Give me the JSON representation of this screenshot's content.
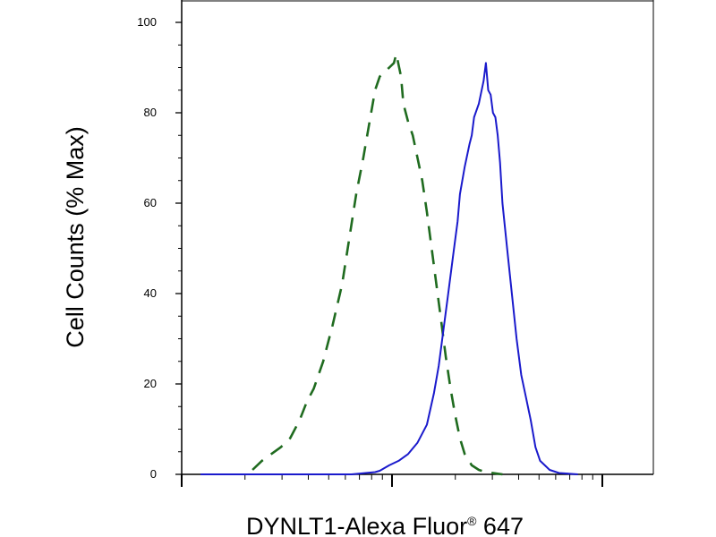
{
  "chart_data": {
    "type": "line",
    "xlabel": "DYNLT1-Alexa Fluor",
    "xlabel_mark": "®",
    "xlabel_suffix": " 647",
    "ylabel": "Cell Counts (% Max)",
    "ylim": [
      0,
      105
    ],
    "yticks": [
      "0",
      "20",
      "40",
      "60",
      "80",
      "100"
    ],
    "x_scale": "log",
    "grid": false,
    "legend": "none",
    "series": [
      {
        "style": "dashed",
        "color": "#1f6b1f",
        "points": [
          [
            0.15,
            1
          ],
          [
            0.17,
            3
          ],
          [
            0.19,
            4.5
          ],
          [
            0.21,
            6
          ],
          [
            0.23,
            8
          ],
          [
            0.25,
            12
          ],
          [
            0.265,
            16
          ],
          [
            0.28,
            19
          ],
          [
            0.3,
            25
          ],
          [
            0.32,
            33
          ],
          [
            0.34,
            42
          ],
          [
            0.355,
            52
          ],
          [
            0.37,
            62
          ],
          [
            0.385,
            70
          ],
          [
            0.4,
            79
          ],
          [
            0.41,
            85
          ],
          [
            0.42,
            88
          ],
          [
            0.43,
            89
          ],
          [
            0.44,
            90
          ],
          [
            0.45,
            91
          ],
          [
            0.455,
            93
          ],
          [
            0.465,
            88
          ],
          [
            0.47,
            82
          ],
          [
            0.48,
            78
          ],
          [
            0.49,
            75
          ],
          [
            0.5,
            70
          ],
          [
            0.51,
            65
          ],
          [
            0.52,
            58
          ],
          [
            0.53,
            50
          ],
          [
            0.54,
            42
          ],
          [
            0.55,
            34
          ],
          [
            0.56,
            26
          ],
          [
            0.57,
            19
          ],
          [
            0.58,
            13
          ],
          [
            0.59,
            8
          ],
          [
            0.6,
            4.5
          ],
          [
            0.615,
            2
          ],
          [
            0.63,
            1
          ],
          [
            0.645,
            0.5
          ],
          [
            0.68,
            0
          ]
        ]
      },
      {
        "style": "solid",
        "color": "#1a1acc",
        "points": [
          [
            0.04,
            0
          ],
          [
            0.36,
            0
          ],
          [
            0.39,
            0.3
          ],
          [
            0.41,
            0.5
          ],
          [
            0.42,
            0.8
          ],
          [
            0.44,
            2
          ],
          [
            0.46,
            3
          ],
          [
            0.48,
            4.5
          ],
          [
            0.5,
            7
          ],
          [
            0.52,
            11
          ],
          [
            0.535,
            18
          ],
          [
            0.545,
            24
          ],
          [
            0.555,
            32
          ],
          [
            0.565,
            40
          ],
          [
            0.575,
            48
          ],
          [
            0.585,
            56
          ],
          [
            0.59,
            62
          ],
          [
            0.6,
            68
          ],
          [
            0.61,
            73
          ],
          [
            0.615,
            75
          ],
          [
            0.62,
            79
          ],
          [
            0.63,
            82
          ],
          [
            0.64,
            87
          ],
          [
            0.645,
            91
          ],
          [
            0.65,
            85
          ],
          [
            0.655,
            84
          ],
          [
            0.66,
            80
          ],
          [
            0.665,
            79
          ],
          [
            0.67,
            75
          ],
          [
            0.675,
            69
          ],
          [
            0.68,
            60
          ],
          [
            0.69,
            50
          ],
          [
            0.7,
            40
          ],
          [
            0.71,
            30
          ],
          [
            0.72,
            22
          ],
          [
            0.73,
            17
          ],
          [
            0.74,
            12
          ],
          [
            0.75,
            6
          ],
          [
            0.76,
            3
          ],
          [
            0.78,
            1
          ],
          [
            0.8,
            0.3
          ],
          [
            0.84,
            0
          ]
        ]
      }
    ]
  }
}
